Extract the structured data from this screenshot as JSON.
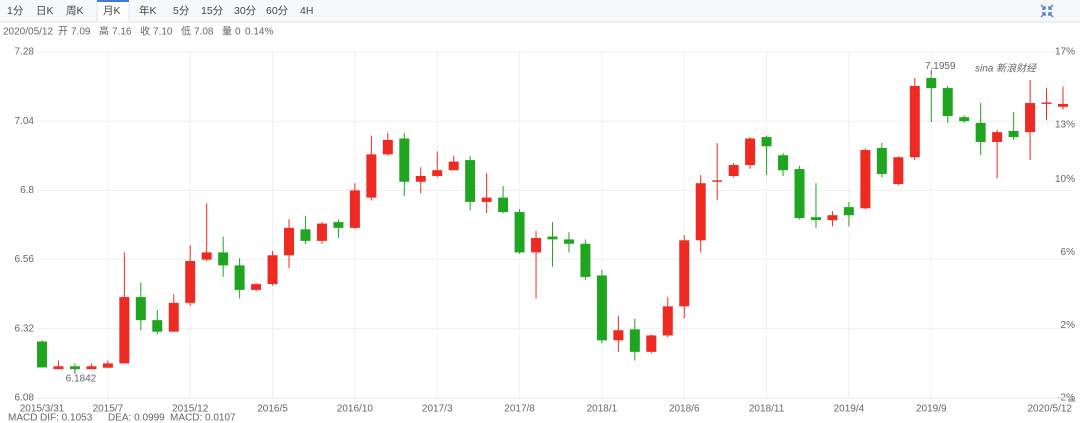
{
  "toolbar": {
    "tabs": [
      "1分",
      "日K",
      "周K",
      "月K",
      "年K",
      "5分",
      "15分",
      "30分",
      "60分",
      "4H"
    ],
    "active": 3
  },
  "quote": {
    "date": "2020/05/12",
    "fields": [
      {
        "label": "开",
        "value": "7.09",
        "color": "#333333"
      },
      {
        "label": "高",
        "value": "7.16",
        "color": "#e8312f"
      },
      {
        "label": "收",
        "value": "7.10",
        "color": "#e8312f"
      },
      {
        "label": "低",
        "value": "7.08",
        "color": "#1aa31a"
      },
      {
        "label": "量",
        "value": "0",
        "color": "#333333"
      }
    ],
    "change": "0.14%",
    "change_color": "#e8312f"
  },
  "watermark": "sina 新浪财经",
  "indicator": {
    "name": "MACD",
    "items": [
      {
        "text": "DIF: 0.1053",
        "color": "#3b7ddd"
      },
      {
        "text": "DEA: 0.0999",
        "color": "#e040e0"
      },
      {
        "text": "MACD: 0.0107",
        "color": "#d03030"
      }
    ]
  },
  "chart_data": {
    "type": "candlestick",
    "categories": [
      "2015/3/31",
      null,
      null,
      null,
      "2015/7",
      null,
      null,
      null,
      null,
      "2015/12",
      null,
      null,
      null,
      null,
      "2016/5",
      null,
      null,
      null,
      null,
      "2016/10",
      null,
      null,
      null,
      null,
      "2017/3",
      null,
      null,
      null,
      null,
      "2017/8",
      null,
      null,
      null,
      null,
      "2018/1",
      null,
      null,
      null,
      null,
      "2018/6",
      null,
      null,
      null,
      null,
      "2018/11",
      null,
      null,
      null,
      null,
      "2019/4",
      null,
      null,
      null,
      null,
      "2019/9",
      null,
      null,
      null,
      null,
      null,
      null,
      null,
      "2020/5/12"
    ],
    "open": [
      6.276,
      6.18,
      6.19,
      6.18,
      6.185,
      6.2,
      6.43,
      6.35,
      6.31,
      6.41,
      6.56,
      6.585,
      6.54,
      6.455,
      6.475,
      6.575,
      6.665,
      6.625,
      6.69,
      6.67,
      6.775,
      6.925,
      6.98,
      6.83,
      6.85,
      6.87,
      6.905,
      6.76,
      6.775,
      6.725,
      6.585,
      6.64,
      6.63,
      6.615,
      6.505,
      6.28,
      6.318,
      6.24,
      6.297,
      6.398,
      6.627,
      6.83,
      6.85,
      6.888,
      6.985,
      6.922,
      6.874,
      6.707,
      6.697,
      6.742,
      6.738,
      6.947,
      6.822,
      6.915,
      7.19,
      7.155,
      7.054,
      7.034,
      6.968,
      7.006,
      7.002,
      7.1,
      7.09
    ],
    "high": [
      6.28,
      6.21,
      6.2,
      6.2,
      6.21,
      6.585,
      6.48,
      6.385,
      6.44,
      6.61,
      6.755,
      6.64,
      6.565,
      6.48,
      6.59,
      6.7,
      6.71,
      6.69,
      6.7,
      6.825,
      6.99,
      7.0,
      7.0,
      6.88,
      6.935,
      6.92,
      6.92,
      6.86,
      6.815,
      6.735,
      6.66,
      6.69,
      6.655,
      6.63,
      6.525,
      6.365,
      6.355,
      6.3,
      6.43,
      6.645,
      6.853,
      6.964,
      6.895,
      6.985,
      6.99,
      6.93,
      6.885,
      6.825,
      6.728,
      6.76,
      6.945,
      6.965,
      6.918,
      7.19,
      7.1959,
      7.162,
      7.06,
      7.103,
      7.01,
      7.072,
      7.183,
      7.155,
      7.16
    ],
    "low": [
      6.186,
      6.185,
      6.1842,
      6.185,
      6.185,
      6.2,
      6.315,
      6.3,
      6.31,
      6.4,
      6.555,
      6.5,
      6.425,
      6.45,
      6.47,
      6.53,
      6.615,
      6.615,
      6.635,
      6.665,
      6.765,
      6.92,
      6.78,
      6.79,
      6.845,
      6.87,
      6.73,
      6.72,
      6.72,
      6.58,
      6.425,
      6.535,
      6.585,
      6.49,
      6.27,
      6.24,
      6.21,
      6.235,
      6.29,
      6.356,
      6.585,
      6.766,
      6.845,
      6.875,
      6.853,
      6.85,
      6.7,
      6.67,
      6.675,
      6.675,
      6.735,
      6.845,
      6.818,
      6.905,
      7.037,
      7.034,
      7.034,
      6.922,
      6.842,
      6.975,
      6.905,
      7.044,
      7.08
    ],
    "close": [
      6.186,
      6.19,
      6.18,
      6.19,
      6.2,
      6.43,
      6.35,
      6.31,
      6.41,
      6.555,
      6.585,
      6.54,
      6.455,
      6.475,
      6.575,
      6.67,
      6.625,
      6.685,
      6.67,
      6.8,
      6.925,
      6.975,
      6.83,
      6.85,
      6.87,
      6.9,
      6.76,
      6.775,
      6.725,
      6.585,
      6.635,
      6.63,
      6.615,
      6.5,
      6.28,
      6.315,
      6.24,
      6.297,
      6.398,
      6.627,
      6.825,
      6.835,
      6.888,
      6.98,
      6.953,
      6.87,
      6.704,
      6.697,
      6.714,
      6.714,
      6.94,
      6.857,
      6.915,
      7.162,
      7.155,
      7.058,
      7.04,
      6.968,
      7.002,
      6.985,
      7.103,
      7.105,
      7.1
    ],
    "up_color": "#ee2a22",
    "down_color": "#1fa51f",
    "ylim": [
      6.08,
      7.28
    ],
    "yticks": [
      7.28,
      7.04,
      6.8,
      6.56,
      6.32,
      6.08
    ],
    "y2lim": [
      -2,
      17
    ],
    "y2ticks": [
      {
        "value": 17,
        "label": "17%"
      },
      {
        "value": 13,
        "label": "13%"
      },
      {
        "value": 10,
        "label": "10%"
      },
      {
        "value": 6,
        "label": "6%"
      },
      {
        "value": 2,
        "label": "2%"
      },
      {
        "value": -2,
        "label": "-2%"
      }
    ],
    "grid": true
  }
}
